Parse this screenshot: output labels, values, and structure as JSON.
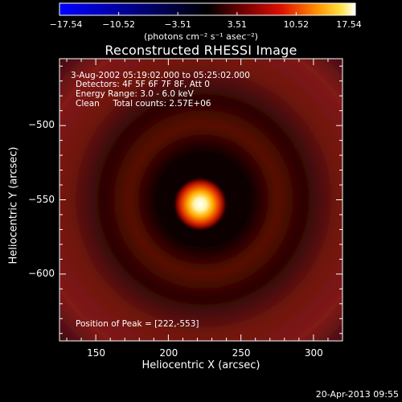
{
  "chart_data": {
    "type": "heatmap",
    "title": "Reconstructed RHESSI Image",
    "xlabel": "Heliocentric X (arcsec)",
    "ylabel": "Heliocentric Y (arcsec)",
    "xlim": [
      125,
      320
    ],
    "ylim": [
      -645,
      -455
    ],
    "xticks": [
      "150",
      "200",
      "250",
      "300"
    ],
    "xtick_values": [
      150,
      200,
      250,
      300
    ],
    "yticks": [
      "−500",
      "−550",
      "−600"
    ],
    "ytick_values": [
      -500,
      -550,
      -600
    ],
    "colorbar": {
      "range": [
        -17.54,
        17.54
      ],
      "tick_labels": [
        "−17.54",
        "−10.52",
        "−3.51",
        "3.51",
        "10.52",
        "17.54"
      ],
      "tick_values": [
        -17.54,
        -10.52,
        -3.51,
        3.51,
        10.52,
        17.54
      ],
      "units_label": "(photons cm⁻² s⁻¹ asec⁻²)"
    },
    "peak": {
      "x": 222,
      "y": -553
    },
    "ring_radius_arcsec": 75,
    "annotations": {
      "time_range": "3-Aug-2002 05:19:02.000 to 05:25:02.000",
      "detectors": "Detectors: 4F 5F 6F 7F 8F, Att 0",
      "energy": "Energy Range: 3.0 - 6.0 keV",
      "clean": "Clean     Total counts: 2.57E+06",
      "peak_text": "Position of Peak = [222,-553]"
    }
  },
  "footer": {
    "timestamp": "20-Apr-2013 09:55"
  },
  "colors": {
    "background": "#000000",
    "text": "#ffffff",
    "colormap": [
      "#0000ff",
      "#000000",
      "#7a0000",
      "#ff2000",
      "#ffa000",
      "#ffffff"
    ]
  }
}
